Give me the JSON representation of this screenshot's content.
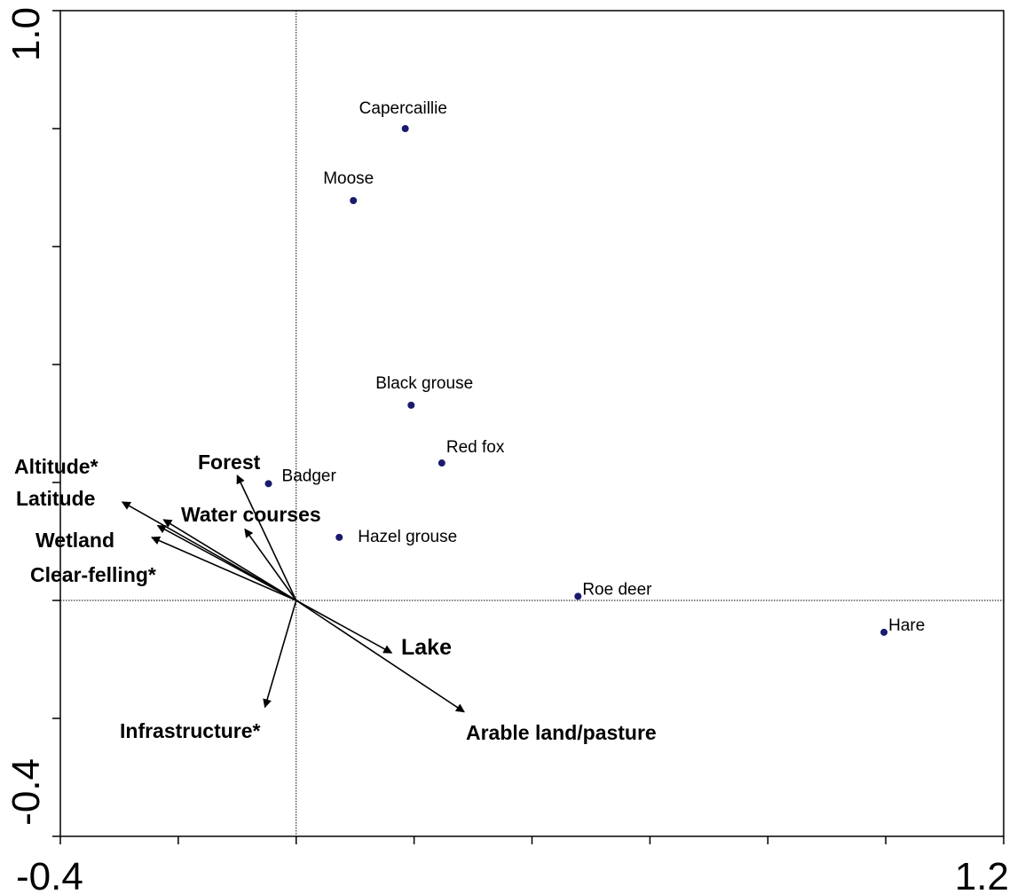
{
  "chart_data": {
    "type": "scatter",
    "subtype": "ordination biplot",
    "title": "",
    "xlabel": "",
    "ylabel": "",
    "xlim": [
      -0.4,
      1.2
    ],
    "ylim": [
      -0.4,
      1.0
    ],
    "x_tick_labels": [
      "-0.4",
      "1.2"
    ],
    "y_tick_labels": [
      "1.0",
      "-0.4"
    ],
    "x_ticks": [
      -0.4,
      -0.2,
      0.0,
      0.2,
      0.4,
      0.6,
      0.8,
      1.0,
      1.2
    ],
    "y_ticks": [
      -0.4,
      -0.2,
      0.0,
      0.2,
      0.4,
      0.6,
      0.8,
      1.0
    ],
    "reference_lines": {
      "x": 0,
      "y": 0,
      "style": "dotted"
    },
    "grid": false,
    "point_color": "#1a1a6e",
    "species": [
      {
        "label": "Capercaillie",
        "x": 0.185,
        "y": 0.8
      },
      {
        "label": "Moose",
        "x": 0.097,
        "y": 0.678
      },
      {
        "label": "Black grouse",
        "x": 0.195,
        "y": 0.331
      },
      {
        "label": "Red fox",
        "x": 0.247,
        "y": 0.233
      },
      {
        "label": "Badger",
        "x": -0.047,
        "y": 0.198
      },
      {
        "label": "Hazel grouse",
        "x": 0.073,
        "y": 0.107
      },
      {
        "label": "Roe deer",
        "x": 0.478,
        "y": 0.007
      },
      {
        "label": "Hare",
        "x": 0.997,
        "y": -0.054
      }
    ],
    "environmental_variables": [
      {
        "label": "Altitude*",
        "x": -0.295,
        "y": 0.167
      },
      {
        "label": "Latitude",
        "x": -0.225,
        "y": 0.137
      },
      {
        "label": "Wetland",
        "x": -0.245,
        "y": 0.107
      },
      {
        "label": "Clear-felling*",
        "x": -0.235,
        "y": 0.127
      },
      {
        "label": "Forest",
        "x": -0.1,
        "y": 0.212
      },
      {
        "label": "Water courses",
        "x": -0.087,
        "y": 0.121
      },
      {
        "label": "Lake",
        "x": 0.162,
        "y": -0.089
      },
      {
        "label": "Arable land/pasture",
        "x": 0.285,
        "y": -0.189
      },
      {
        "label": "Infrastructure*",
        "x": -0.053,
        "y": -0.181
      }
    ]
  }
}
